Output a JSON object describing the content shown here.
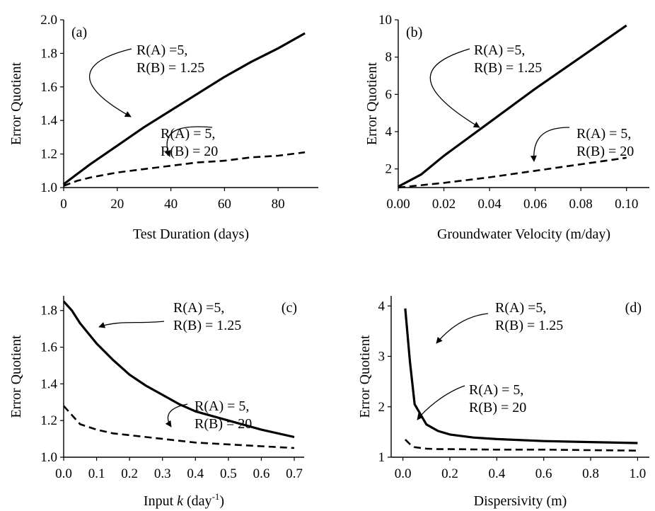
{
  "chart_data": [
    {
      "id": "a",
      "type": "line",
      "panel_label": "(a)",
      "xlabel": "Test Duration (days)",
      "ylabel": "Error Quotient",
      "xlim": [
        0,
        95
      ],
      "ylim": [
        1.0,
        2.0
      ],
      "xticks": [
        0,
        20,
        40,
        60,
        80
      ],
      "xtick_labels": [
        "0",
        "20",
        "40",
        "60",
        "80"
      ],
      "yticks": [
        1.0,
        1.2,
        1.4,
        1.6,
        1.8,
        2.0
      ],
      "ytick_labels": [
        "1.0",
        "1.2",
        "1.4",
        "1.6",
        "1.8",
        "2.0"
      ],
      "series": [
        {
          "style": "solid",
          "x": [
            0,
            5,
            10,
            20,
            30,
            40,
            50,
            60,
            70,
            80,
            90
          ],
          "y": [
            1.02,
            1.08,
            1.14,
            1.25,
            1.36,
            1.46,
            1.56,
            1.66,
            1.75,
            1.83,
            1.92
          ]
        },
        {
          "style": "dashed",
          "x": [
            0,
            5,
            10,
            20,
            30,
            40,
            50,
            60,
            70,
            80,
            90
          ],
          "y": [
            1.01,
            1.04,
            1.06,
            1.09,
            1.11,
            1.13,
            1.15,
            1.16,
            1.18,
            1.19,
            1.21
          ]
        }
      ],
      "annotations": [
        {
          "lines": [
            "R(A) =5,",
            "R(B) = 1.25"
          ]
        },
        {
          "lines": [
            "R(A) = 5,",
            "R(B) = 20"
          ]
        }
      ]
    },
    {
      "id": "b",
      "type": "line",
      "panel_label": "(b)",
      "xlabel": "Groundwater Velocity (m/day)",
      "ylabel": "Error Quotient",
      "xlim": [
        0,
        0.11
      ],
      "ylim": [
        1,
        10
      ],
      "xticks": [
        0,
        0.02,
        0.04,
        0.06,
        0.08,
        0.1
      ],
      "xtick_labels": [
        "0.00",
        "0.02",
        "0.04",
        "0.06",
        "0.08",
        "0.10"
      ],
      "yticks": [
        2,
        4,
        6,
        8,
        10
      ],
      "ytick_labels": [
        "2",
        "4",
        "6",
        "8",
        "10"
      ],
      "series": [
        {
          "style": "solid",
          "x": [
            0,
            0.01,
            0.02,
            0.04,
            0.06,
            0.08,
            0.1
          ],
          "y": [
            1.05,
            1.7,
            2.7,
            4.5,
            6.3,
            8.0,
            9.7
          ]
        },
        {
          "style": "dashed",
          "x": [
            0,
            0.02,
            0.04,
            0.06,
            0.08,
            0.1
          ],
          "y": [
            1.0,
            1.25,
            1.55,
            1.9,
            2.25,
            2.6
          ]
        }
      ],
      "annotations": [
        {
          "lines": [
            "R(A) =5,",
            "R(B) = 1.25"
          ]
        },
        {
          "lines": [
            "R(A) = 5,",
            "R(B) = 20"
          ]
        }
      ]
    },
    {
      "id": "c",
      "type": "line",
      "panel_label": "(c)",
      "xlabel_parts": [
        "Input ",
        "k",
        " (day",
        "-1",
        ")"
      ],
      "ylabel": "Error Quotient",
      "xlim": [
        0,
        0.73
      ],
      "ylim": [
        1.0,
        1.88
      ],
      "xticks": [
        0,
        0.1,
        0.2,
        0.3,
        0.4,
        0.5,
        0.6,
        0.7
      ],
      "xtick_labels": [
        "0.0",
        "0.1",
        "0.2",
        "0.3",
        "0.4",
        "0.5",
        "0.6",
        "0.7"
      ],
      "yticks": [
        1.0,
        1.2,
        1.4,
        1.6,
        1.8
      ],
      "ytick_labels": [
        "1.0",
        "1.2",
        "1.4",
        "1.6",
        "1.8"
      ],
      "series": [
        {
          "style": "solid",
          "x": [
            0,
            0.025,
            0.05,
            0.1,
            0.15,
            0.2,
            0.25,
            0.3,
            0.35,
            0.4,
            0.5,
            0.6,
            0.7
          ],
          "y": [
            1.85,
            1.8,
            1.73,
            1.62,
            1.53,
            1.45,
            1.39,
            1.34,
            1.29,
            1.25,
            1.2,
            1.15,
            1.11
          ]
        },
        {
          "style": "dashed",
          "x": [
            0,
            0.025,
            0.05,
            0.1,
            0.15,
            0.2,
            0.3,
            0.4,
            0.5,
            0.6,
            0.7
          ],
          "y": [
            1.28,
            1.23,
            1.18,
            1.15,
            1.13,
            1.12,
            1.1,
            1.08,
            1.07,
            1.06,
            1.05
          ]
        }
      ],
      "annotations": [
        {
          "lines": [
            "R(A) =5,",
            "R(B) = 1.25"
          ]
        },
        {
          "lines": [
            "R(A) = 5,",
            "R(B) = 20"
          ]
        }
      ]
    },
    {
      "id": "d",
      "type": "line",
      "panel_label": "(d)",
      "xlabel": "Dispersivity (m)",
      "ylabel": "Error Quotient",
      "xlim": [
        -0.05,
        1.05
      ],
      "ylim": [
        1,
        4.2
      ],
      "xticks": [
        0,
        0.2,
        0.4,
        0.6,
        0.8,
        1.0
      ],
      "xtick_labels": [
        "0.0",
        "0.2",
        "0.4",
        "0.6",
        "0.8",
        "1.0"
      ],
      "yticks": [
        1,
        2,
        3,
        4
      ],
      "ytick_labels": [
        "1",
        "2",
        "3",
        "4"
      ],
      "series": [
        {
          "style": "solid",
          "x": [
            0.01,
            0.03,
            0.05,
            0.1,
            0.15,
            0.2,
            0.3,
            0.4,
            0.6,
            0.8,
            1.0
          ],
          "y": [
            3.95,
            2.9,
            2.05,
            1.65,
            1.52,
            1.45,
            1.39,
            1.36,
            1.32,
            1.3,
            1.28
          ]
        },
        {
          "style": "dashed",
          "x": [
            0.01,
            0.03,
            0.05,
            0.1,
            0.15,
            0.2,
            0.4,
            0.6,
            0.8,
            1.0
          ],
          "y": [
            1.35,
            1.26,
            1.2,
            1.17,
            1.16,
            1.16,
            1.15,
            1.15,
            1.14,
            1.13
          ]
        }
      ],
      "annotations": [
        {
          "lines": [
            "R(A) =5,",
            "R(B) = 1.25"
          ]
        },
        {
          "lines": [
            "R(A) = 5,",
            "R(B) = 20"
          ]
        }
      ]
    }
  ]
}
